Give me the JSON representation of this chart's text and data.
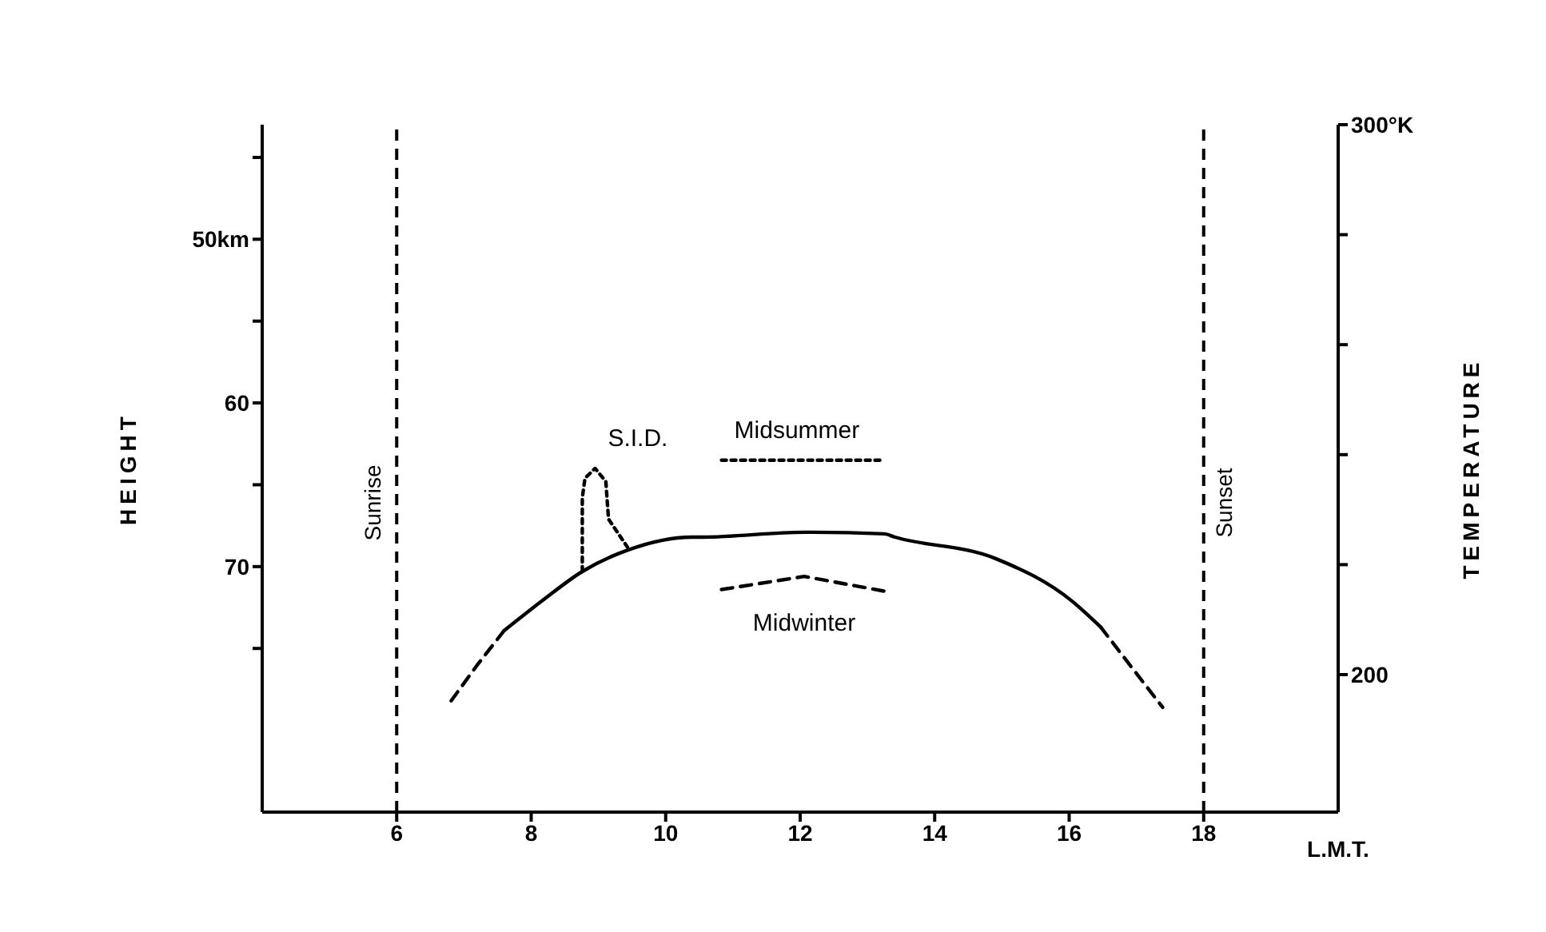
{
  "chart_data": {
    "type": "line",
    "xlabel": "L.M.T.",
    "ylabel": "HEIGHT",
    "y2label": "TEMPERATURE",
    "xlim": [
      4,
      20
    ],
    "xticks": [
      6,
      8,
      10,
      12,
      14,
      16,
      18
    ],
    "ylim": [
      85,
      43
    ],
    "yticks": [
      {
        "value": 45,
        "label": null
      },
      {
        "value": 50,
        "label": "50km"
      },
      {
        "value": 55,
        "label": null
      },
      {
        "value": 60,
        "label": "60"
      },
      {
        "value": 65,
        "label": null
      },
      {
        "value": 70,
        "label": "70"
      },
      {
        "value": 75,
        "label": null
      }
    ],
    "y2lim": [
      175,
      300
    ],
    "y2ticks": [
      {
        "value": 200,
        "label": "200"
      },
      {
        "value": 220,
        "label": null
      },
      {
        "value": 240,
        "label": null
      },
      {
        "value": 260,
        "label": null
      },
      {
        "value": 280,
        "label": null
      },
      {
        "value": 300,
        "label": "300°K"
      }
    ],
    "series": [
      {
        "color": "#000000",
        "line_style": "dashed",
        "x": [
          6.81,
          7.2,
          7.6
        ],
        "values": [
          78.2,
          76.0,
          73.9
        ]
      },
      {
        "color": "#000000",
        "line_style": "solid",
        "x": [
          7.6,
          8.16,
          8.76,
          9.43,
          10.39,
          10.55,
          12.06,
          13.25,
          13.41,
          14.9,
          16.04,
          16.47
        ],
        "values": [
          73.9,
          72.1,
          70.3,
          69.0,
          68.2,
          68.2,
          67.9,
          68.0,
          68.2,
          69.5,
          72.1,
          73.7
        ]
      },
      {
        "color": "#000000",
        "line_style": "dashed",
        "x": [
          16.47,
          16.9,
          17.39
        ],
        "values": [
          73.7,
          76.0,
          78.6
        ]
      },
      {
        "name": "S.I.D.",
        "color": "#000000",
        "line_style": "dotted",
        "x": [
          8.76,
          8.76,
          8.8,
          8.95,
          9.11,
          9.15,
          9.43
        ],
        "values": [
          70.3,
          65.8,
          64.6,
          64.0,
          64.8,
          67.1,
          68.8
        ]
      },
      {
        "name": "Midsummer",
        "color": "#000000",
        "line_style": "dotted",
        "x": [
          10.83,
          13.25
        ],
        "values": [
          63.5,
          63.5
        ]
      },
      {
        "name": "Midwinter",
        "color": "#000000",
        "line_style": "dashed",
        "x": [
          10.83,
          12.06,
          13.25
        ],
        "values": [
          71.4,
          70.6,
          71.5
        ]
      }
    ],
    "ref_lines": [
      {
        "axis": "x",
        "value": 6,
        "label": "Sunrise",
        "color": "#000000",
        "line_style": "dashed"
      },
      {
        "axis": "x",
        "value": 18,
        "label": "Sunset",
        "color": "#000000",
        "line_style": "dashed"
      }
    ],
    "legend": false
  }
}
